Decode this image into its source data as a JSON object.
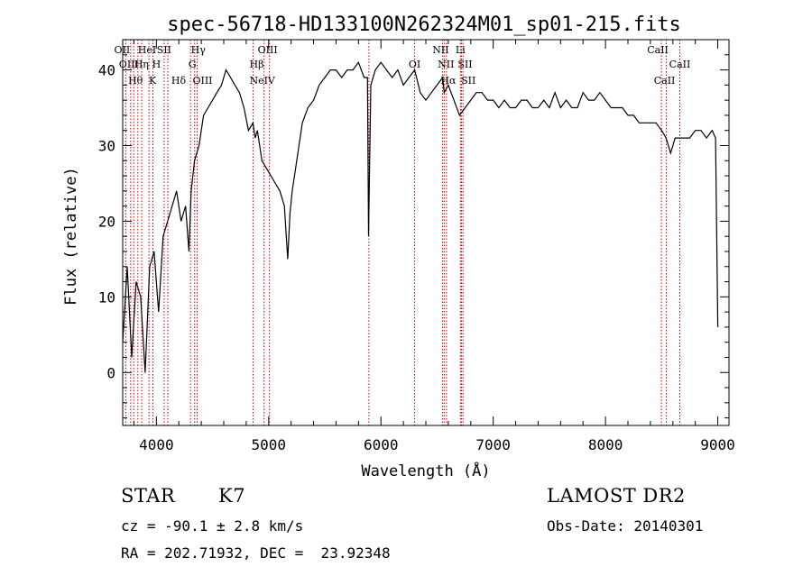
{
  "chart_data": {
    "type": "line",
    "title": "spec-56718-HD133100N262324M01_sp01-215.fits",
    "xlabel": "Wavelength (Å)",
    "ylabel": "Flux (relative)",
    "xlim": [
      3700,
      9100
    ],
    "ylim": [
      -7,
      44
    ],
    "xticks": [
      4000,
      5000,
      6000,
      7000,
      8000,
      9000
    ],
    "yticks": [
      0,
      10,
      20,
      30,
      40
    ],
    "grid": false,
    "series": [
      {
        "color": "#000000",
        "x": [
          3700,
          3740,
          3780,
          3820,
          3860,
          3900,
          3940,
          3980,
          4020,
          4060,
          4100,
          4140,
          4180,
          4220,
          4260,
          4290,
          4310,
          4340,
          4380,
          4420,
          4460,
          4500,
          4540,
          4580,
          4620,
          4660,
          4700,
          4740,
          4780,
          4820,
          4860,
          4880,
          4900,
          4940,
          4980,
          5020,
          5060,
          5100,
          5140,
          5170,
          5190,
          5210,
          5250,
          5300,
          5350,
          5400,
          5450,
          5500,
          5550,
          5600,
          5650,
          5700,
          5750,
          5800,
          5850,
          5880,
          5890,
          5910,
          5950,
          6000,
          6050,
          6100,
          6150,
          6200,
          6250,
          6300,
          6350,
          6400,
          6450,
          6500,
          6550,
          6563,
          6600,
          6650,
          6700,
          6750,
          6800,
          6850,
          6900,
          6950,
          7000,
          7050,
          7100,
          7150,
          7200,
          7250,
          7300,
          7350,
          7400,
          7450,
          7500,
          7550,
          7600,
          7650,
          7700,
          7750,
          7800,
          7850,
          7900,
          7950,
          8000,
          8050,
          8100,
          8150,
          8200,
          8250,
          8300,
          8350,
          8400,
          8450,
          8500,
          8540,
          8580,
          8620,
          8660,
          8700,
          8750,
          8800,
          8850,
          8900,
          8950,
          8980,
          9000
        ],
        "y": [
          4,
          14,
          2,
          12,
          10,
          0,
          14,
          16,
          8,
          18,
          20,
          22,
          24,
          20,
          22,
          16,
          24,
          28,
          30,
          34,
          35,
          36,
          37,
          38,
          40,
          39,
          38,
          37,
          35,
          32,
          33,
          31,
          32,
          28,
          27,
          26,
          25,
          24,
          22,
          15,
          21,
          24,
          28,
          33,
          35,
          36,
          38,
          39,
          40,
          40,
          39,
          40,
          40,
          41,
          39,
          39,
          18,
          38,
          40,
          41,
          40,
          39,
          40,
          38,
          39,
          40,
          37,
          36,
          37,
          38,
          39,
          37,
          38,
          36,
          34,
          35,
          36,
          37,
          37,
          36,
          36,
          35,
          36,
          35,
          35,
          36,
          36,
          35,
          35,
          36,
          35,
          37,
          35,
          36,
          35,
          35,
          37,
          36,
          36,
          37,
          36,
          35,
          35,
          35,
          34,
          34,
          33,
          33,
          33,
          33,
          32,
          31,
          29,
          31,
          31,
          31,
          31,
          32,
          32,
          31,
          32,
          31,
          6
        ]
      }
    ],
    "lines": [
      {
        "x": 3727,
        "label": "OII",
        "row": 0,
        "dx": -4
      },
      {
        "x": 3771,
        "label": "OIII",
        "row": 1,
        "dx": -2
      },
      {
        "x": 3798,
        "label": "Hθ",
        "row": 2,
        "dx": 2
      },
      {
        "x": 3835,
        "label": "Hη",
        "row": 1,
        "dx": 4
      },
      {
        "x": 3869,
        "label": "HeI",
        "row": 0,
        "dx": 6
      },
      {
        "x": 3934,
        "label": "K",
        "row": 2,
        "dx": 4
      },
      {
        "x": 3969,
        "label": "H",
        "row": 1,
        "dx": 4
      },
      {
        "x": 4069,
        "label": "SII",
        "row": 0,
        "dx": 0
      },
      {
        "x": 4102,
        "label": "Hδ",
        "row": 2,
        "dx": 12
      },
      {
        "x": 4304,
        "label": "G",
        "row": 1,
        "dx": 2
      },
      {
        "x": 4341,
        "label": "Hγ",
        "row": 0,
        "dx": 4
      },
      {
        "x": 4363,
        "label": "OIII",
        "row": 2,
        "dx": 6
      },
      {
        "x": 4861,
        "label": "Hβ",
        "row": 1,
        "dx": 4
      },
      {
        "x": 4959,
        "label": "NeIV",
        "row": 2,
        "dx": -2
      },
      {
        "x": 5007,
        "label": "OIII",
        "row": 0,
        "dx": -2
      },
      {
        "x": 5893,
        "label": "",
        "row": 0,
        "dx": 0
      },
      {
        "x": 6300,
        "label": "OI",
        "row": 1,
        "dx": 0
      },
      {
        "x": 6548,
        "label": "NII",
        "row": 0,
        "dx": -2
      },
      {
        "x": 6563,
        "label": "NII",
        "row": 1,
        "dx": 2
      },
      {
        "x": 6584,
        "label": "Hα",
        "row": 2,
        "dx": 2
      },
      {
        "x": 6708,
        "label": "Li",
        "row": 0,
        "dx": 0
      },
      {
        "x": 6717,
        "label": "SII",
        "row": 1,
        "dx": 4
      },
      {
        "x": 6731,
        "label": "SII",
        "row": 2,
        "dx": 6
      },
      {
        "x": 8498,
        "label": "CaII",
        "row": 0,
        "dx": -4
      },
      {
        "x": 8542,
        "label": "CaII",
        "row": 2,
        "dx": -2
      },
      {
        "x": 8662,
        "label": "CaII",
        "row": 1,
        "dx": 0
      }
    ]
  },
  "info": {
    "class_label": "STAR",
    "subclass": "K7",
    "survey": "LAMOST DR2",
    "cz": "cz = -90.1 ± 2.8 km/s",
    "obs_date": "Obs-Date: 20140301",
    "coords": "RA = 202.71932, DEC =  23.92348"
  }
}
